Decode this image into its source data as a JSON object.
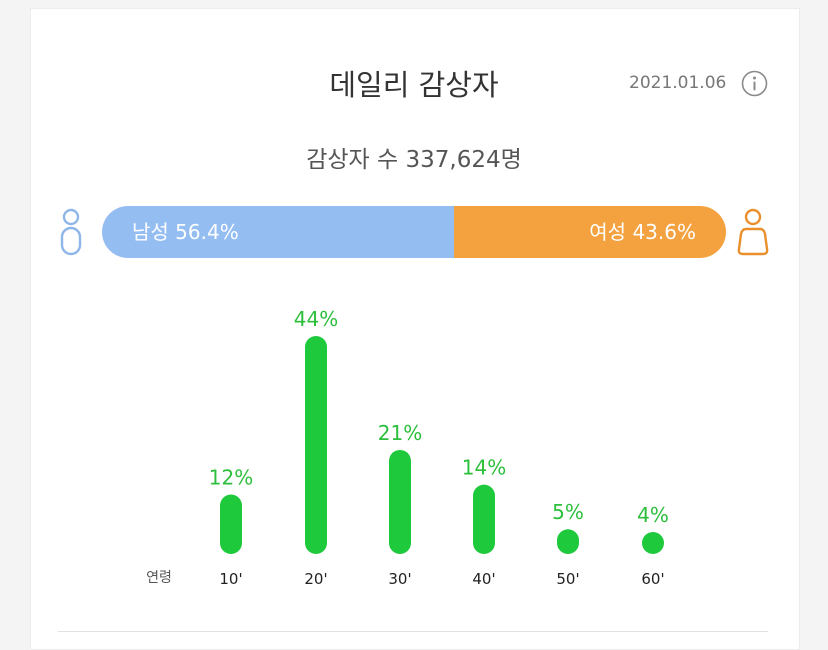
{
  "header": {
    "title": "데일리 감상자",
    "date": "2021.01.06",
    "info_icon": "info-circle-icon"
  },
  "summary": {
    "total_label": "감상자 수 337,624명"
  },
  "gender": {
    "male": {
      "label": "남성 56.4%",
      "percent": 56.4,
      "color": "#94bdf2",
      "icon": "male-person-icon"
    },
    "female": {
      "label": "여성 43.6%",
      "percent": 43.6,
      "color": "#f4a13f",
      "icon": "female-person-icon"
    }
  },
  "chart_data": {
    "type": "bar",
    "xlabel": "연령",
    "categories": [
      "10'",
      "20'",
      "30'",
      "40'",
      "50'",
      "60'"
    ],
    "values": [
      12,
      44,
      21,
      14,
      5,
      4
    ],
    "value_labels": [
      "12%",
      "44%",
      "21%",
      "14%",
      "5%",
      "4%"
    ],
    "ylim": [
      0,
      44
    ],
    "grid": false,
    "bar_color": "#1ec93c",
    "label_color": "#2cbf3c"
  }
}
